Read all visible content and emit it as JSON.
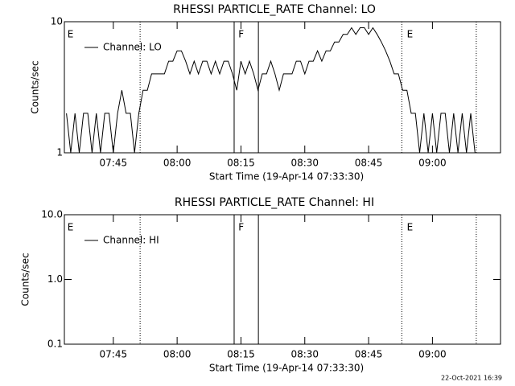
{
  "chart_data": [
    {
      "type": "line",
      "title": "RHESSI PARTICLE_RATE Channel: LO",
      "xlabel": "Start Time (19-Apr-14 07:33:30)",
      "ylabel": "Counts/sec",
      "log_y": true,
      "ylim": [
        1,
        10
      ],
      "yticks": [
        1,
        10
      ],
      "xlim": [
        453.5,
        556
      ],
      "xticks": [
        {
          "value": 465,
          "label": "07:45"
        },
        {
          "value": 480,
          "label": "08:00"
        },
        {
          "value": 495,
          "label": "08:15"
        },
        {
          "value": 510,
          "label": "08:30"
        },
        {
          "value": 525,
          "label": "08:45"
        },
        {
          "value": 540,
          "label": "09:00"
        }
      ],
      "series": [
        {
          "name": "Channel: LO",
          "color": "#000000",
          "x": [
            454,
            455,
            456,
            457,
            458,
            459,
            460,
            461,
            462,
            463,
            464,
            465,
            466,
            467,
            468,
            469,
            470,
            471,
            472,
            473,
            474,
            475,
            476,
            477,
            478,
            479,
            480,
            481,
            482,
            483,
            484,
            485,
            486,
            487,
            488,
            489,
            490,
            491,
            492,
            493,
            494,
            495,
            496,
            497,
            498,
            499,
            500,
            501,
            502,
            503,
            504,
            505,
            506,
            507,
            508,
            509,
            510,
            511,
            512,
            513,
            514,
            515,
            516,
            517,
            518,
            519,
            520,
            521,
            522,
            523,
            524,
            525,
            526,
            527,
            528,
            529,
            530,
            531,
            532,
            533,
            534,
            535,
            536,
            537,
            538,
            539,
            540,
            541,
            542,
            543,
            544,
            545,
            546,
            547,
            548,
            549,
            550
          ],
          "values": [
            2,
            1,
            2,
            1,
            2,
            2,
            1,
            2,
            1,
            2,
            2,
            1,
            2,
            3,
            2,
            2,
            1,
            2,
            3,
            3,
            4,
            4,
            4,
            4,
            5,
            5,
            6,
            6,
            5,
            4,
            5,
            4,
            5,
            5,
            4,
            5,
            4,
            5,
            5,
            4,
            3,
            5,
            4,
            5,
            4,
            3,
            4,
            4,
            5,
            4,
            3,
            4,
            4,
            4,
            5,
            5,
            4,
            5,
            5,
            6,
            5,
            6,
            6,
            7,
            7,
            8,
            8,
            9,
            8,
            9,
            9,
            8,
            9,
            8,
            7,
            6,
            5,
            4,
            4,
            3,
            3,
            2,
            2,
            1,
            2,
            1,
            2,
            1,
            2,
            2,
            1,
            2,
            1,
            2,
            1,
            2,
            1
          ]
        }
      ],
      "markers": [
        {
          "x": 471.3,
          "style": "dotted"
        },
        {
          "x": 493.4,
          "style": "solid"
        },
        {
          "x": 499.1,
          "style": "solid"
        },
        {
          "x": 532.8,
          "style": "dotted"
        },
        {
          "x": 550.3,
          "style": "dotted"
        }
      ],
      "annotations": [
        {
          "x": 454.2,
          "text": "E"
        },
        {
          "x": 494.4,
          "text": "F"
        },
        {
          "x": 534,
          "text": "E"
        }
      ]
    },
    {
      "type": "line",
      "title": "RHESSI PARTICLE_RATE Channel: HI",
      "xlabel": "Start Time (19-Apr-14 07:33:30)",
      "ylabel": "Counts/sec",
      "log_y": true,
      "ylim": [
        0.1,
        10
      ],
      "yticks": [
        0.1,
        {
          "value": 1,
          "label": "1.0"
        },
        {
          "value": 10,
          "label": "10.0"
        }
      ],
      "xlim": [
        453.5,
        556
      ],
      "xticks": [
        {
          "value": 465,
          "label": "07:45"
        },
        {
          "value": 480,
          "label": "08:00"
        },
        {
          "value": 495,
          "label": "08:15"
        },
        {
          "value": 510,
          "label": "08:30"
        },
        {
          "value": 525,
          "label": "08:45"
        },
        {
          "value": 540,
          "label": "09:00"
        }
      ],
      "series": [
        {
          "name": "Channel: HI",
          "color": "#000000"
        }
      ],
      "markers": [
        {
          "x": 471.3,
          "style": "dotted"
        },
        {
          "x": 493.4,
          "style": "solid"
        },
        {
          "x": 499.1,
          "style": "solid"
        },
        {
          "x": 532.8,
          "style": "dotted"
        },
        {
          "x": 550.3,
          "style": "dotted"
        }
      ],
      "annotations": [
        {
          "x": 454.2,
          "text": "E"
        },
        {
          "x": 494.4,
          "text": "F"
        },
        {
          "x": 534,
          "text": "E"
        }
      ]
    }
  ],
  "footer": "22-Oct-2021 16:39"
}
